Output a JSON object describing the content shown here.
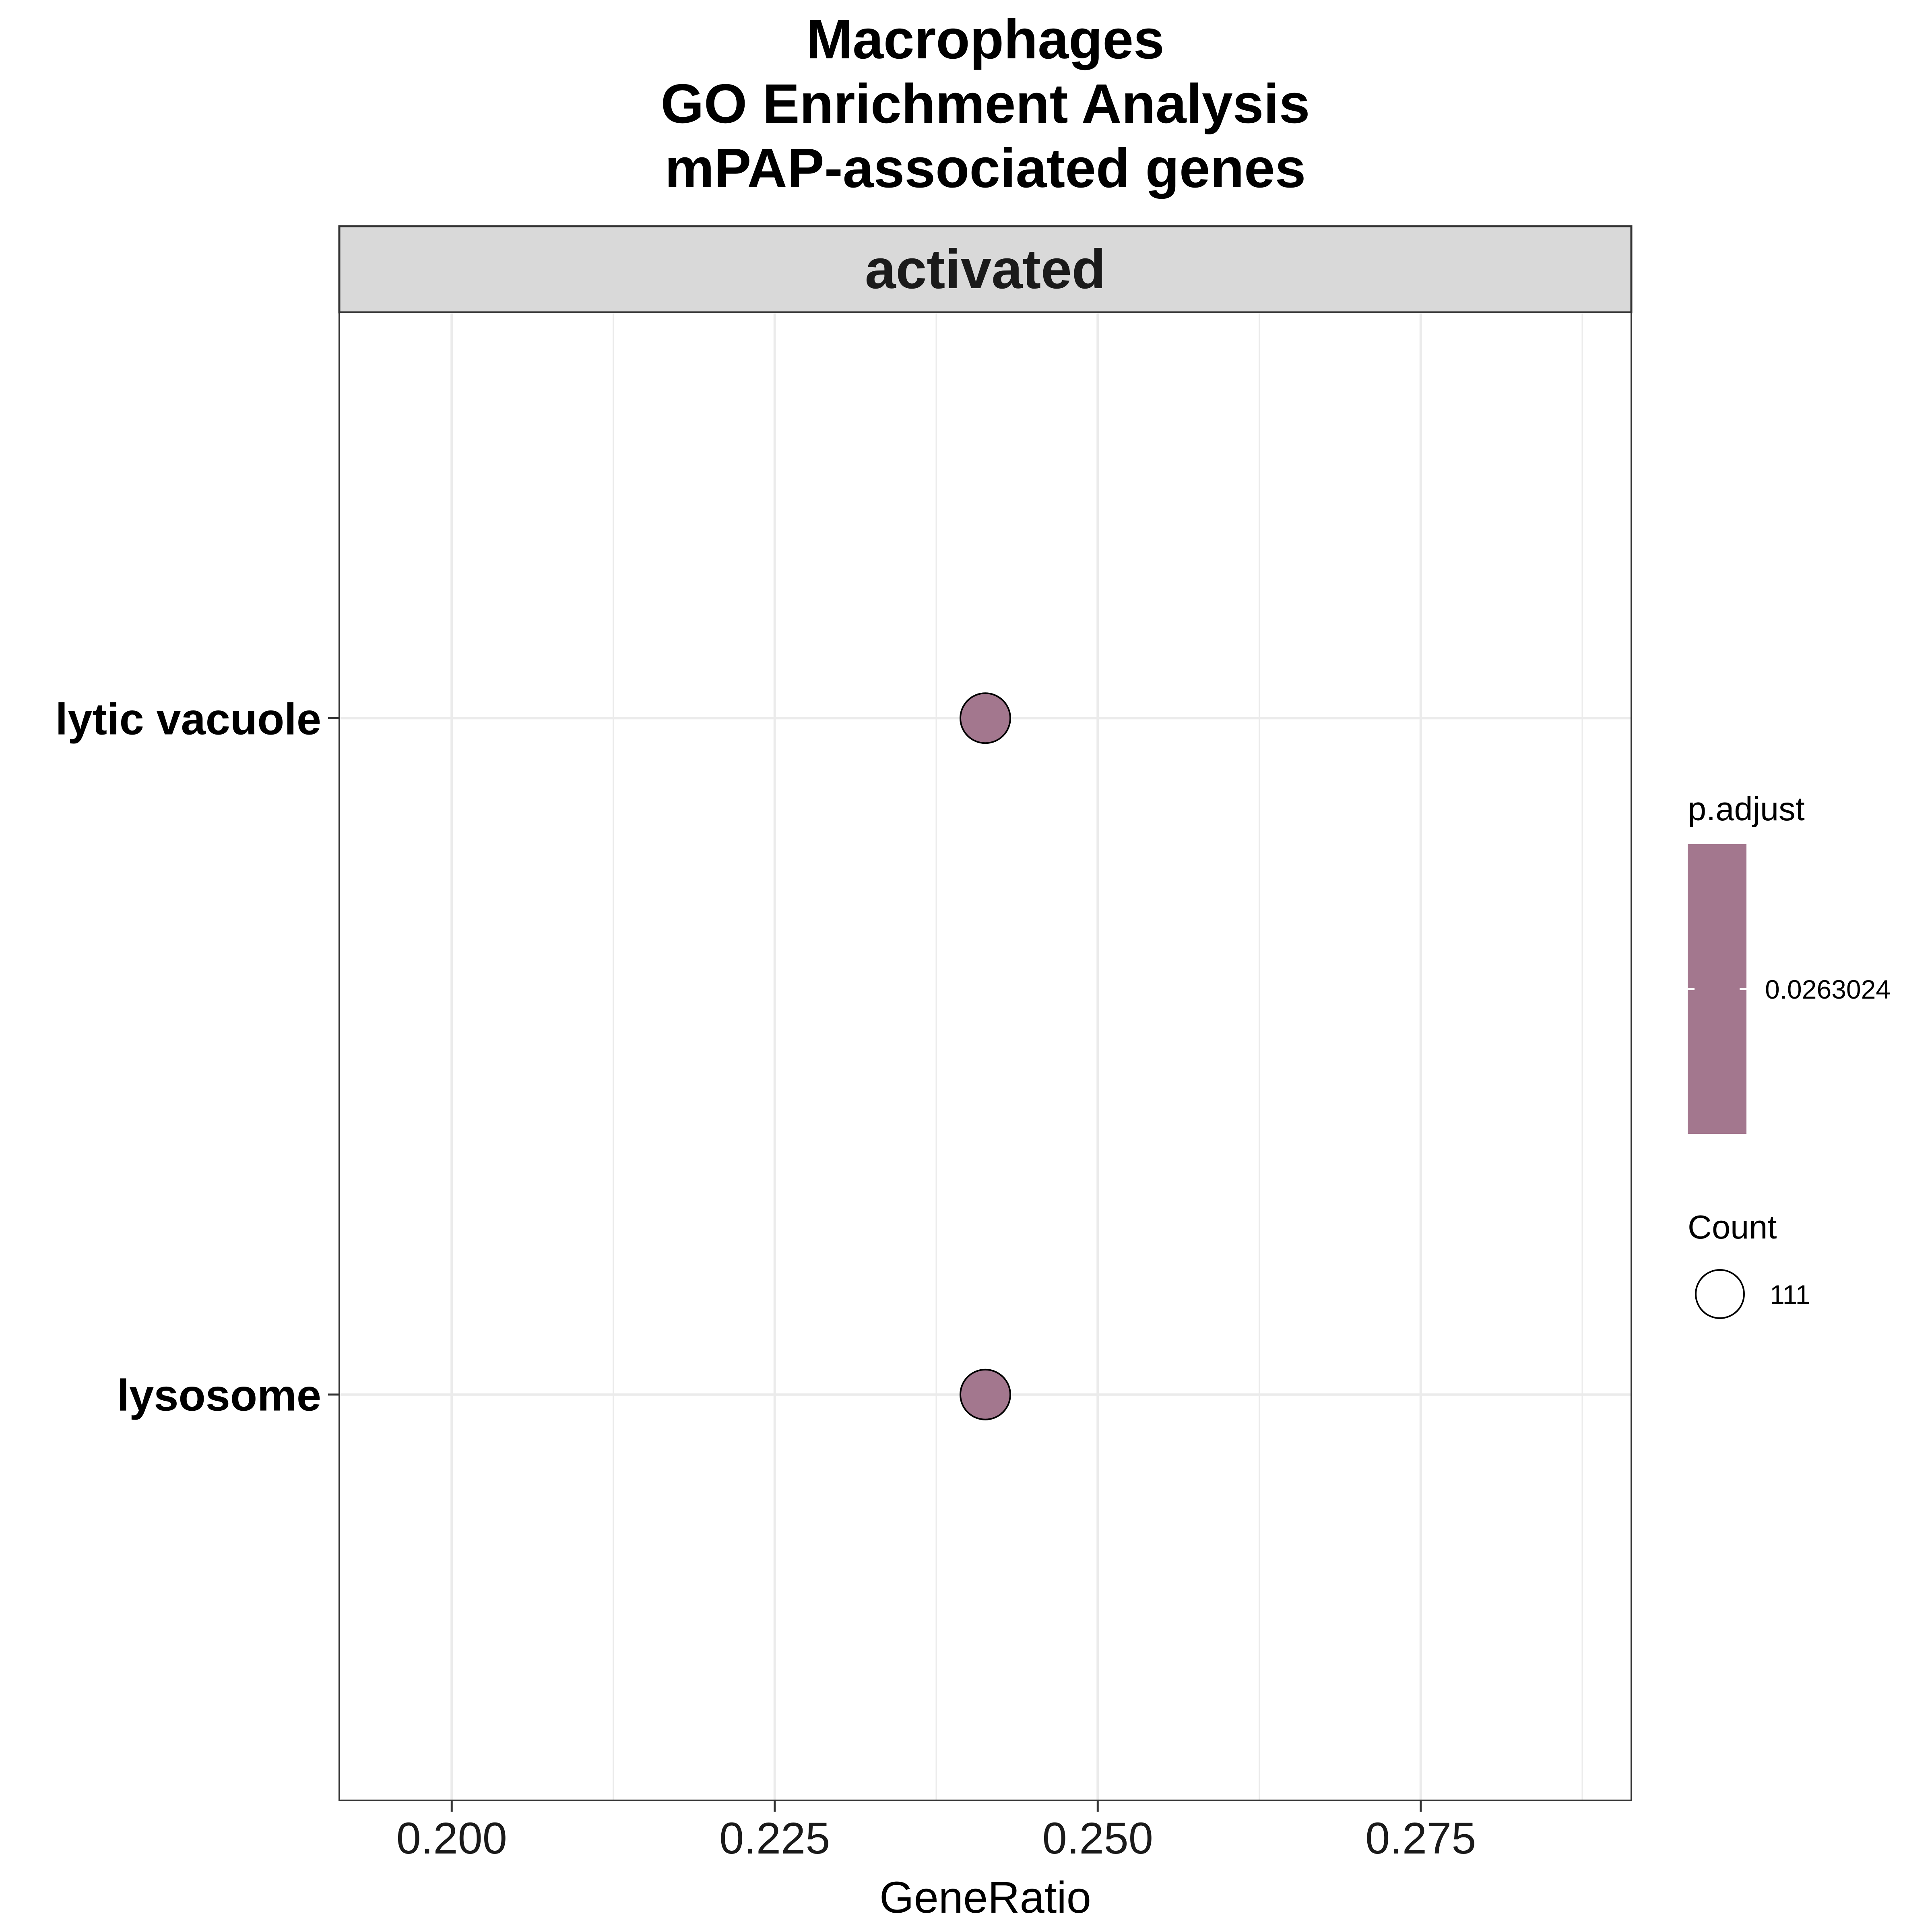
{
  "chart_data": {
    "type": "scatter",
    "title": [
      "Macrophages",
      "GO Enrichment Analysis",
      "mPAP-associated genes"
    ],
    "facet": "activated",
    "xlabel": "GeneRatio",
    "ylabel": "",
    "xlim": [
      0.1913,
      0.2913
    ],
    "xticks": [
      0.2,
      0.225,
      0.25,
      0.275
    ],
    "xtick_labels": [
      "0.200",
      "0.225",
      "0.250",
      "0.275"
    ],
    "categories": [
      "lytic vacuole",
      "lysosome"
    ],
    "points": [
      {
        "term": "lytic vacuole",
        "x": 0.2413,
        "count": 111,
        "p_adjust": 0.0263024
      },
      {
        "term": "lysosome",
        "x": 0.2413,
        "count": 111,
        "p_adjust": 0.0263024
      }
    ],
    "grid": true,
    "legend": {
      "placement": "right",
      "color": {
        "title": "p.adjust",
        "label": "0.0263024",
        "color": "#a3778e"
      },
      "size": {
        "title": "Count",
        "label": "111"
      }
    }
  }
}
